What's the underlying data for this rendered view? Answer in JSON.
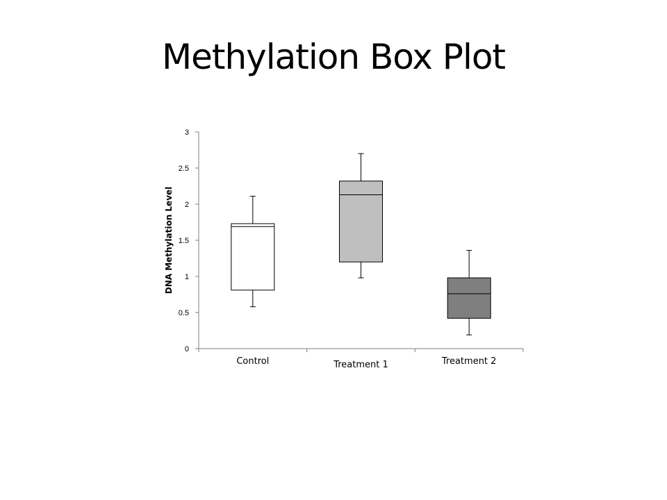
{
  "slide": {
    "title": "Methylation Box Plot"
  },
  "chart_data": {
    "type": "box",
    "title": "",
    "xlabel": "",
    "ylabel": "DNA Methylation Level",
    "ylim": [
      0,
      3
    ],
    "yticks": [
      "0",
      "0.5",
      "1",
      "1.5",
      "2",
      "2.5",
      "3"
    ],
    "grid": false,
    "legend": "none",
    "categories": [
      "Control",
      "Treatment 1",
      "Treatment 2"
    ],
    "boxes": [
      {
        "category": "Control",
        "min": 0.58,
        "q1": 0.81,
        "median": 1.69,
        "q3": 1.73,
        "max": 2.11,
        "fill": "#ffffff"
      },
      {
        "category": "Treatment 1",
        "min": 0.98,
        "q1": 1.2,
        "median": 2.13,
        "q3": 2.32,
        "max": 2.7,
        "fill": "#bfbfbf"
      },
      {
        "category": "Treatment 2",
        "min": 0.19,
        "q1": 0.42,
        "median": 0.76,
        "q3": 0.98,
        "max": 1.36,
        "fill": "#7f7f7f"
      }
    ]
  }
}
